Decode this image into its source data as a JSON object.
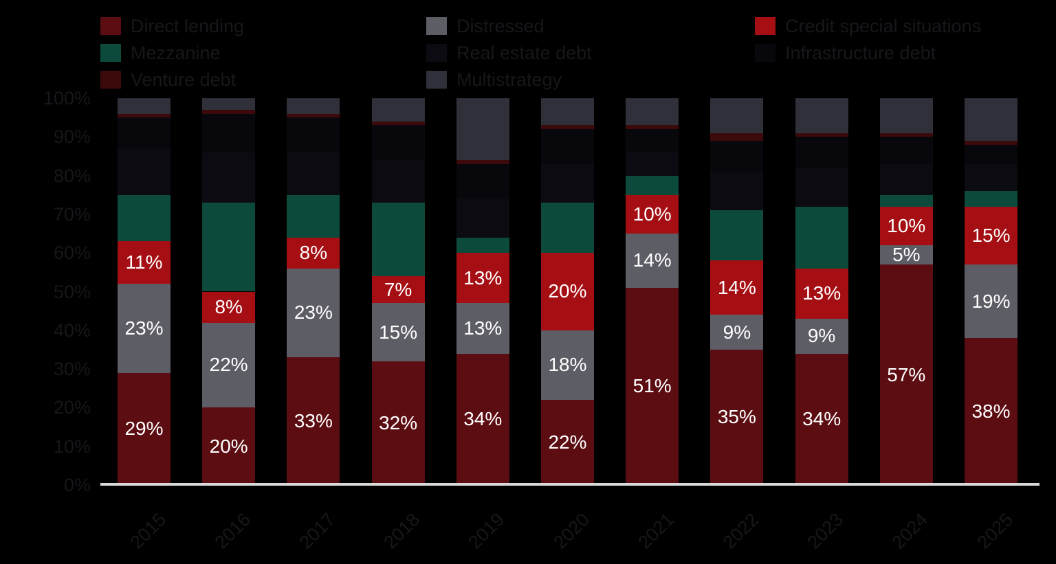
{
  "colors": {
    "background": "#000000",
    "axis_line": "#D9D9D9",
    "data_label_text": "#FFFFFF",
    "muted_text": "#16171A"
  },
  "legend": {
    "columns": [
      {
        "items": [
          {
            "label": "Direct lending",
            "color": "#5C0D12"
          },
          {
            "label": "Mezzanine",
            "color": "#0C4B3B"
          },
          {
            "label": "Venture debt",
            "color": "#3D0A0C"
          }
        ]
      },
      {
        "items": [
          {
            "label": "Distressed",
            "color": "#5D5D65"
          },
          {
            "label": "Real estate debt",
            "color": "#0B0B11"
          },
          {
            "label": "Multistrategy",
            "color": "#30303A"
          }
        ]
      },
      {
        "items": [
          {
            "label": "Credit special situations",
            "color": "#A50E13"
          },
          {
            "label": "Infrastructure debt",
            "color": "#08080C"
          }
        ]
      }
    ]
  },
  "axes": {
    "y_ticks": [
      "100%",
      "90%",
      "80%",
      "70%",
      "60%",
      "50%",
      "40%",
      "30%",
      "20%",
      "10%",
      "0%"
    ],
    "x_ticks": [
      "2015",
      "2016",
      "2017",
      "2018",
      "2019",
      "2020",
      "2021",
      "2022",
      "2023",
      "2024",
      "2025"
    ]
  },
  "chart_data": {
    "type": "bar",
    "stacked": true,
    "unit": "percent",
    "ylim": [
      0,
      100
    ],
    "grid": false,
    "legend_position": "top",
    "categories": [
      "2015",
      "2016",
      "2017",
      "2018",
      "2019",
      "2020",
      "2021",
      "2022",
      "2023",
      "2024",
      "2025"
    ],
    "series": [
      {
        "name": "Direct lending",
        "color": "#5C0D12",
        "labeled": true,
        "values": [
          29,
          20,
          33,
          32,
          34,
          22,
          51,
          35,
          34,
          57,
          38
        ]
      },
      {
        "name": "Distressed",
        "color": "#5D5D65",
        "labeled": true,
        "values": [
          23,
          22,
          23,
          15,
          13,
          18,
          14,
          9,
          9,
          5,
          19
        ]
      },
      {
        "name": "Credit special situations",
        "color": "#A50E13",
        "labeled": true,
        "values": [
          11,
          8,
          8,
          7,
          13,
          20,
          10,
          14,
          13,
          10,
          15
        ]
      },
      {
        "name": "Mezzanine",
        "color": "#0C4B3B",
        "labeled": false,
        "values": [
          12,
          23,
          11,
          19,
          4,
          13,
          5,
          13,
          16,
          3,
          4
        ]
      },
      {
        "name": "Real estate debt",
        "color": "#0B0B11",
        "labeled": false,
        "values": [
          12,
          13,
          11,
          11,
          10,
          10,
          6,
          10,
          10,
          8,
          7
        ]
      },
      {
        "name": "Infrastructure debt",
        "color": "#08080C",
        "labeled": false,
        "values": [
          8,
          10,
          9,
          9,
          9,
          9,
          6,
          8,
          8,
          7,
          5
        ]
      },
      {
        "name": "Venture debt",
        "color": "#3D0A0C",
        "labeled": false,
        "values": [
          1,
          1,
          1,
          1,
          1,
          1,
          1,
          2,
          1,
          1,
          1
        ]
      },
      {
        "name": "Multistrategy",
        "color": "#30303A",
        "labeled": false,
        "values": [
          4,
          3,
          4,
          6,
          16,
          7,
          7,
          9,
          9,
          9,
          11
        ]
      }
    ],
    "data_label_rule": "labels shown only for Direct lending, Distressed and Credit special situations segments"
  }
}
